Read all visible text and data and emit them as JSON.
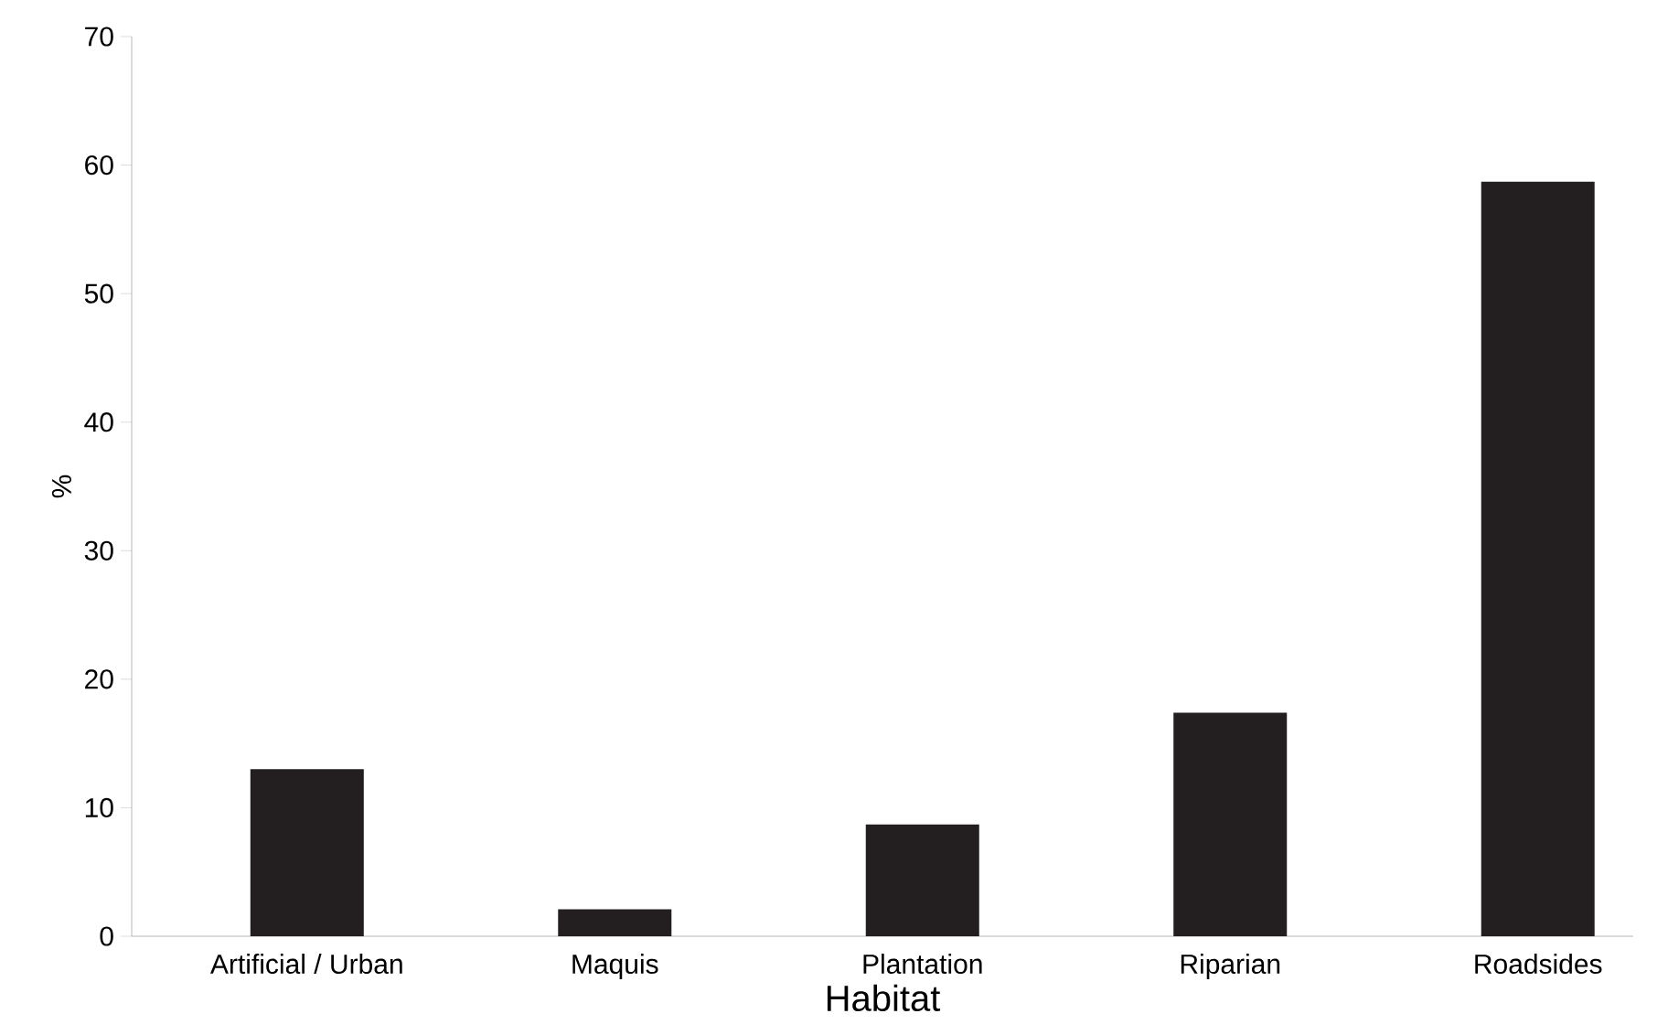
{
  "chart_data": {
    "type": "bar",
    "xlabel": "Habitat",
    "ylabel": "%",
    "categories": [
      "Artificial / Urban",
      "Maquis",
      "Plantation",
      "Riparian",
      "Roadsides"
    ],
    "values": [
      13.0,
      2.1,
      8.7,
      17.4,
      58.7
    ],
    "color": "#231f20",
    "ylim": [
      0,
      70
    ],
    "yticks": [
      0,
      10,
      20,
      30,
      40,
      50,
      60,
      70
    ]
  }
}
